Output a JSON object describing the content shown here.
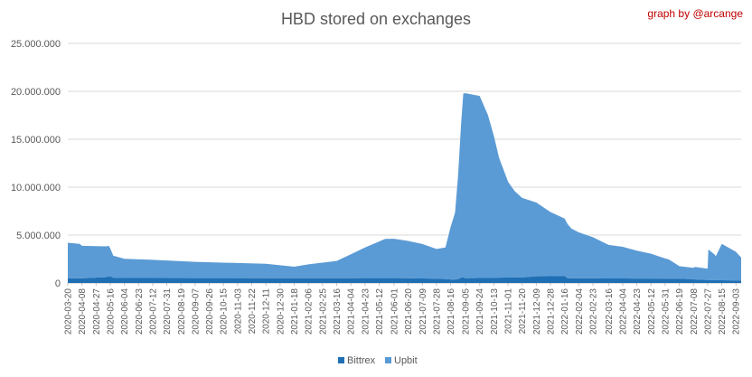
{
  "header": {
    "title": "HBD stored on exchanges",
    "credit": "graph by @arcange"
  },
  "colors": {
    "bittrex": "#1f6fb5",
    "upbit": "#5b9bd5",
    "grid": "#d9d9d9",
    "axis_text": "#595959"
  },
  "chart_data": {
    "type": "area",
    "stacked": true,
    "title": "HBD stored on exchanges",
    "ylim": [
      0,
      25000000
    ],
    "yticks": [
      0,
      5000000,
      10000000,
      15000000,
      20000000,
      25000000
    ],
    "ytick_labels": [
      "0",
      "5.000.000",
      "10.000.000",
      "15.000.000",
      "20.000.000",
      "25.000.000"
    ],
    "grid": "horizontal",
    "legend": "bottom-center",
    "xtick_labels": [
      "2020-03-20",
      "2020-04-08",
      "2020-04-27",
      "2020-05-16",
      "2020-06-04",
      "2020-06-23",
      "2020-07-12",
      "2020-07-31",
      "2020-08-19",
      "2020-09-07",
      "2020-09-26",
      "2020-10-15",
      "2020-11-03",
      "2020-11-22",
      "2020-12-11",
      "2020-12-30",
      "2021-01-18",
      "2021-02-06",
      "2021-02-25",
      "2021-03-16",
      "2021-04-04",
      "2021-04-23",
      "2021-05-12",
      "2021-06-01",
      "2021-06-20",
      "2021-07-09",
      "2021-07-28",
      "2021-08-16",
      "2021-09-05",
      "2021-09-24",
      "2021-10-13",
      "2021-11-01",
      "2021-11-20",
      "2021-12-09",
      "2021-12-28",
      "2022-01-16",
      "2022-02-04",
      "2022-02-23",
      "2022-03-16",
      "2022-04-04",
      "2022-04-23",
      "2022-05-12",
      "2022-05-31",
      "2022-06-19",
      "2022-07-08",
      "2022-07-27",
      "2022-08-15",
      "2022-09-03"
    ],
    "series": [
      {
        "name": "Bittrex",
        "x": [
          "2020-03-20",
          "2020-04-08",
          "2020-05-10",
          "2020-05-16",
          "2020-05-20",
          "2020-06-04",
          "2020-09-07",
          "2020-12-30",
          "2021-02-06",
          "2021-03-16",
          "2021-06-01",
          "2021-07-28",
          "2021-08-20",
          "2021-08-26",
          "2021-09-01",
          "2021-09-05",
          "2021-09-24",
          "2021-10-13",
          "2021-11-20",
          "2021-12-09",
          "2022-01-16",
          "2022-01-20",
          "2022-02-04",
          "2022-04-04",
          "2022-06-19",
          "2022-07-27",
          "2022-08-15",
          "2022-09-10"
        ],
        "values": [
          500000,
          480000,
          600000,
          700000,
          550000,
          520000,
          510000,
          500000,
          490000,
          500000,
          510000,
          450000,
          350000,
          400000,
          600000,
          500000,
          520000,
          550000,
          580000,
          700000,
          720000,
          500000,
          480000,
          470000,
          450000,
          300000,
          280000,
          250000
        ]
      },
      {
        "name": "Upbit",
        "x": [
          "2020-03-20",
          "2020-04-05",
          "2020-04-08",
          "2020-05-14",
          "2020-05-20",
          "2020-06-04",
          "2020-07-12",
          "2020-09-07",
          "2020-12-11",
          "2020-12-30",
          "2021-01-18",
          "2021-02-06",
          "2021-03-16",
          "2021-04-04",
          "2021-04-23",
          "2021-05-20",
          "2021-06-01",
          "2021-06-20",
          "2021-07-09",
          "2021-07-28",
          "2021-08-09",
          "2021-08-16",
          "2021-08-22",
          "2021-08-26",
          "2021-08-30",
          "2021-09-02",
          "2021-09-05",
          "2021-09-24",
          "2021-10-05",
          "2021-10-13",
          "2021-10-20",
          "2021-11-01",
          "2021-11-10",
          "2021-11-20",
          "2021-12-09",
          "2021-12-28",
          "2022-01-16",
          "2022-01-25",
          "2022-02-04",
          "2022-02-23",
          "2022-03-16",
          "2022-04-04",
          "2022-04-23",
          "2022-05-12",
          "2022-05-31",
          "2022-06-05",
          "2022-06-19",
          "2022-07-08",
          "2022-07-10",
          "2022-07-27",
          "2022-07-28",
          "2022-08-05",
          "2022-08-07",
          "2022-08-15",
          "2022-09-03",
          "2022-09-10"
        ],
        "values": [
          3700000,
          3600000,
          3400000,
          3200000,
          2300000,
          2000000,
          1900000,
          1700000,
          1500000,
          1350000,
          1200000,
          1450000,
          1800000,
          2500000,
          3200000,
          4100000,
          4100000,
          3900000,
          3600000,
          3100000,
          3300000,
          5500000,
          7000000,
          10800000,
          16000000,
          19200000,
          19300000,
          19000000,
          17000000,
          14800000,
          12500000,
          10000000,
          9000000,
          8300000,
          7700000,
          6700000,
          6000000,
          5200000,
          4800000,
          4300000,
          3500000,
          3300000,
          2900000,
          2600000,
          2100000,
          2000000,
          1300000,
          1200000,
          1300000,
          1200000,
          3200000,
          2700000,
          2500000,
          3800000,
          3000000,
          2400000
        ]
      }
    ]
  }
}
